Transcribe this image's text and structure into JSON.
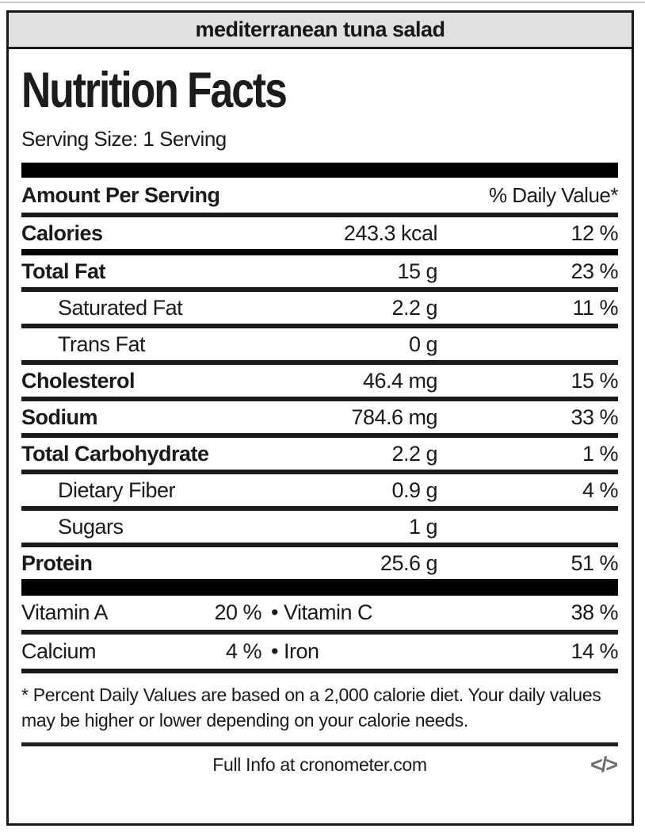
{
  "colors": {
    "header_bg": "#e0e0e0",
    "line": "#1a1a1a",
    "bar": "#000000",
    "icon_gray": "#6e6e6e"
  },
  "label": {
    "title_bar": {
      "text": "mediterranean tuna salad"
    },
    "heading": "Nutrition Facts",
    "serving_size": "Serving Size: 1 Serving",
    "column_headers": {
      "amount": "Amount Per Serving",
      "daily_value": "% Daily Value*"
    },
    "rows": [
      {
        "label": "Calories",
        "bold": true,
        "indent": false,
        "value": "243.3 kcal",
        "dv": "12 %",
        "sep_after": "thick"
      },
      {
        "label": "Total Fat",
        "bold": true,
        "indent": false,
        "value": "15 g",
        "dv": "23 %",
        "sep_after": "double"
      },
      {
        "label": "Saturated Fat",
        "bold": false,
        "indent": true,
        "value": "2.2 g",
        "dv": "11 %",
        "sep_after": "double"
      },
      {
        "label": "Trans Fat",
        "bold": false,
        "indent": true,
        "value": "0 g",
        "dv": "",
        "sep_after": "double"
      },
      {
        "label": "Cholesterol",
        "bold": true,
        "indent": false,
        "value": "46.4 mg",
        "dv": "15 %",
        "sep_after": "double"
      },
      {
        "label": "Sodium",
        "bold": true,
        "indent": false,
        "value": "784.6 mg",
        "dv": "33 %",
        "sep_after": "double"
      },
      {
        "label": "Total Carbohydrate",
        "bold": true,
        "indent": false,
        "value": "2.2 g",
        "dv": "1 %",
        "sep_after": "double"
      },
      {
        "label": "Dietary Fiber",
        "bold": false,
        "indent": true,
        "value": "0.9 g",
        "dv": "4 %",
        "sep_after": "double"
      },
      {
        "label": "Sugars",
        "bold": false,
        "indent": true,
        "value": "1 g",
        "dv": "",
        "sep_after": "double"
      },
      {
        "label": "Protein",
        "bold": true,
        "indent": false,
        "value": "25.6 g",
        "dv": "51 %",
        "sep_after": "none"
      }
    ],
    "micronutrient_rows": [
      {
        "left_label": "Vitamin A",
        "left_value": "20 %",
        "separator": "•",
        "right_label": "Vitamin C",
        "right_value": "38 %"
      },
      {
        "left_label": "Calcium",
        "left_value": "4 %",
        "separator": "•",
        "right_label": "Iron",
        "right_value": "14 %"
      }
    ],
    "footnote": "* Percent Daily Values are based on a 2,000 calorie diet. Your daily values may be higher or lower depending on your calorie needs.",
    "footer": {
      "text": "Full Info at cronometer.com",
      "embed_icon_glyph": "</>"
    }
  }
}
